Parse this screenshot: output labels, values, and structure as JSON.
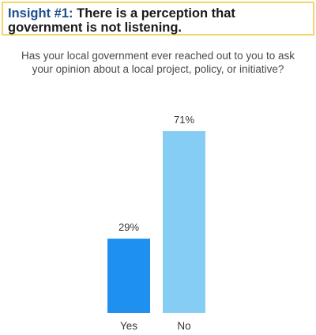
{
  "header": {
    "insight_label": "Insight #1:",
    "insight_text": "There is a perception that government is not listening."
  },
  "question": "Has your local government ever reached out to you to ask your opinion about a local project, policy, or initiative?",
  "chart_data": {
    "type": "bar",
    "categories": [
      "Yes",
      "No"
    ],
    "values": [
      29,
      71
    ],
    "value_labels": [
      "29%",
      "71%"
    ],
    "colors": [
      "#1e90ef",
      "#86cdf6"
    ],
    "ylim": [
      0,
      71
    ],
    "grid": false
  }
}
